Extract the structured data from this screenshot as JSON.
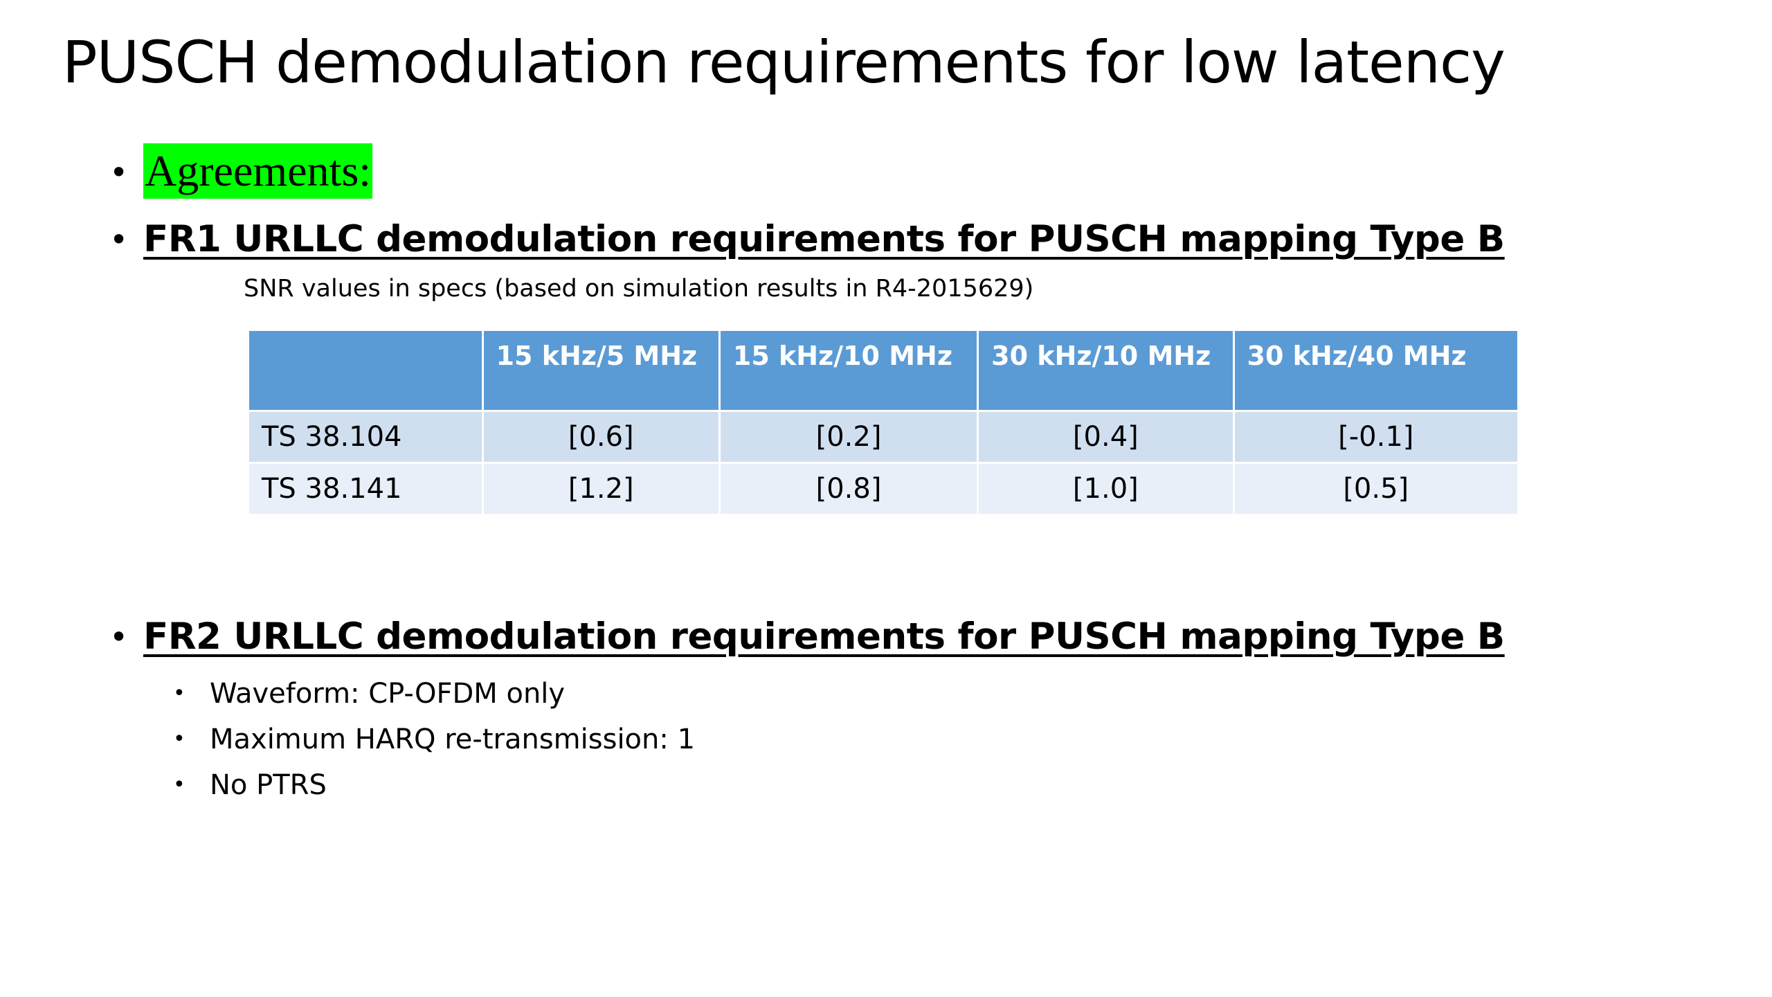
{
  "slide": {
    "title": "PUSCH demodulation requirements for low latency",
    "bullet_symbol": "•",
    "agreements_label": "Agreements:",
    "agreements_highlight_color": "#00ff00",
    "fr1": {
      "heading": "FR1 URLLC demodulation requirements for PUSCH mapping Type B",
      "note": "SNR values in specs (based on simulation results in R4-2015629)",
      "table": {
        "header_color": "#5b9bd5",
        "headers": [
          "",
          "15 kHz/5 MHz",
          "15 kHz/10 MHz",
          "30 kHz/10 MHz",
          "30 kHz/40 MHz"
        ],
        "rows": [
          {
            "label": "TS 38.104",
            "values": [
              "[0.6]",
              "[0.2]",
              "[0.4]",
              "[-0.1]"
            ]
          },
          {
            "label": "TS 38.141",
            "values": [
              "[1.2]",
              "[0.8]",
              "[1.0]",
              "[0.5]"
            ]
          }
        ]
      }
    },
    "fr2": {
      "heading": "FR2 URLLC demodulation requirements for PUSCH mapping Type B",
      "items": [
        "Waveform: CP-OFDM only",
        "Maximum HARQ re-transmission: 1",
        "No PTRS"
      ]
    }
  }
}
